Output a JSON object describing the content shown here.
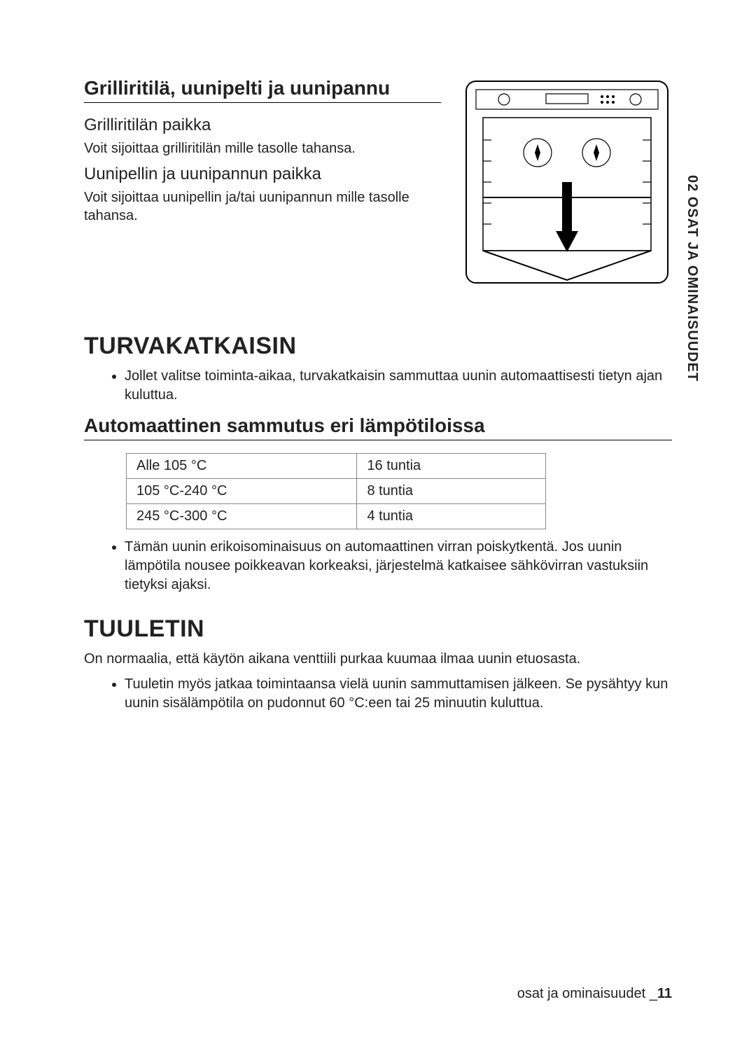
{
  "sidebar_tab": "02 OSAT JA OMINAISUUDET",
  "section1": {
    "title": "Grilliritilä, uunipelti ja uunipannu",
    "sub1_title": "Grilliritilän paikka",
    "sub1_body": "Voit sijoittaa grilliritilän mille tasolle tahansa.",
    "sub2_title": "Uunipellin ja uunipannun paikka",
    "sub2_body": "Voit sijoittaa uunipellin ja/tai uunipannun mille tasolle tahansa."
  },
  "section2": {
    "heading": "TURVAKATKAISIN",
    "bullet1": "Jollet valitse toiminta-aikaa, turvakatkaisin sammuttaa uunin automaattisesti tietyn ajan kuluttua.",
    "subheading": "Automaattinen sammutus eri lämpötiloissa",
    "table": {
      "rows": [
        [
          "Alle 105 °C",
          "16 tuntia"
        ],
        [
          "105 °C-240 °C",
          "8 tuntia"
        ],
        [
          "245 °C-300 °C",
          "4 tuntia"
        ]
      ]
    },
    "bullet2": "Tämän uunin erikoisominaisuus on automaattinen virran poiskytkentä. Jos uunin lämpötila nousee poikkeavan korkeaksi, järjestelmä katkaisee sähkövirran vastuksiin tietyksi ajaksi."
  },
  "section3": {
    "heading": "TUULETIN",
    "intro": "On normaalia, että käytön aikana venttiili purkaa kuumaa ilmaa uunin etuosasta.",
    "bullet1": "Tuuletin myös jatkaa toimintaansa vielä uunin sammuttamisen jälkeen. Se pysähtyy kun uunin sisälämpötila on pudonnut 60 °C:een tai 25 minuutin kuluttua."
  },
  "footer": {
    "text": "osat ja ominaisuudet _",
    "page": "11"
  },
  "colors": {
    "text": "#222222",
    "border": "#888888",
    "bg": "#ffffff"
  }
}
